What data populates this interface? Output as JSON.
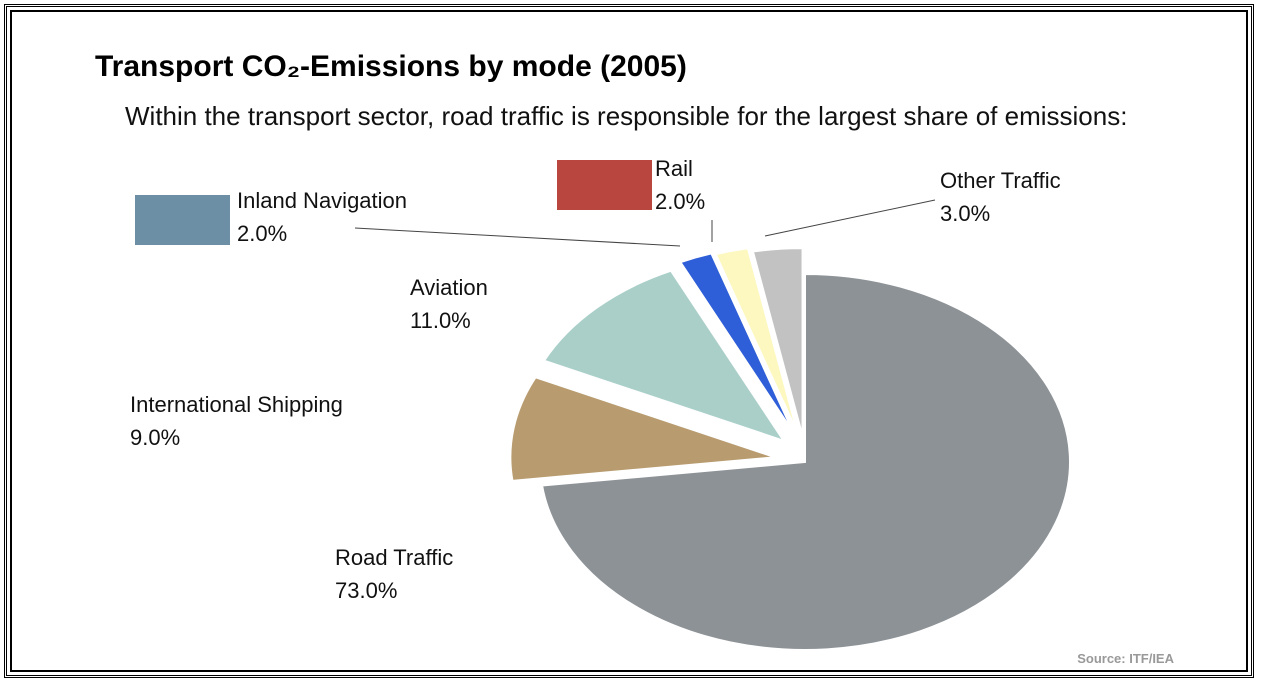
{
  "chart_data": {
    "type": "pie",
    "title": "Transport CO₂-Emissions by mode (2005)",
    "subtitle": "Within the transport sector, road traffic is responsible for the largest share of emissions:",
    "categories": [
      "Road Traffic",
      "International Shipping",
      "Aviation",
      "Inland Navigation",
      "Rail",
      "Other Traffic"
    ],
    "values": [
      73.0,
      9.0,
      11.0,
      2.0,
      2.0,
      3.0
    ],
    "value_labels": [
      "73.0%",
      "9.0%",
      "11.0%",
      "2.0%",
      "2.0%",
      "3.0%"
    ],
    "colors": [
      "#8d9296",
      "#b89c70",
      "#a9cfc8",
      "#2f5fd8",
      "#fdf8c0",
      "#c2c2c2"
    ],
    "source": "Source: ITF/IEA"
  }
}
